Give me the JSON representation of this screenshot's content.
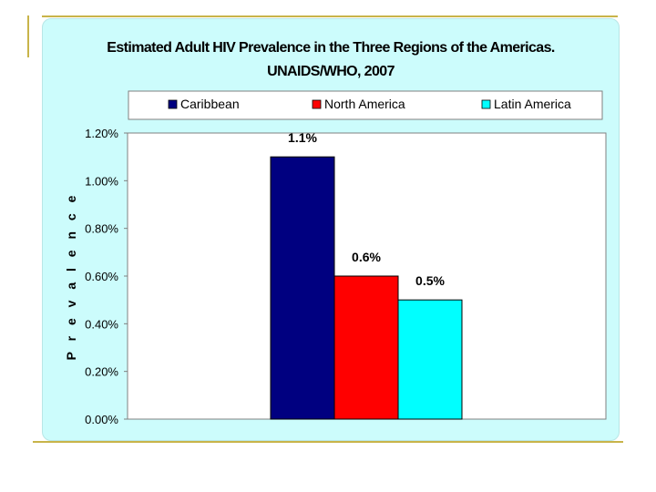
{
  "chart_data": {
    "type": "bar",
    "title": "Estimated Adult HIV Prevalence in the Three Regions of the Americas.",
    "subtitle": "UNAIDS/WHO, 2007",
    "xlabel": "",
    "ylabel": "P r e v a l e n c e",
    "ylim": [
      0,
      1.2
    ],
    "yticks": [
      "0.00%",
      "0.20%",
      "0.40%",
      "0.60%",
      "0.80%",
      "1.00%",
      "1.20%"
    ],
    "grid": false,
    "legend_position": "top",
    "series": [
      {
        "name": "Caribbean",
        "value": 1.1,
        "label": "1.1%",
        "color": "#000080"
      },
      {
        "name": "North America",
        "value": 0.6,
        "label": "0.6%",
        "color": "#ff0000"
      },
      {
        "name": "Latin America",
        "value": 0.5,
        "label": "0.5%",
        "color": "#00ffff"
      }
    ]
  }
}
